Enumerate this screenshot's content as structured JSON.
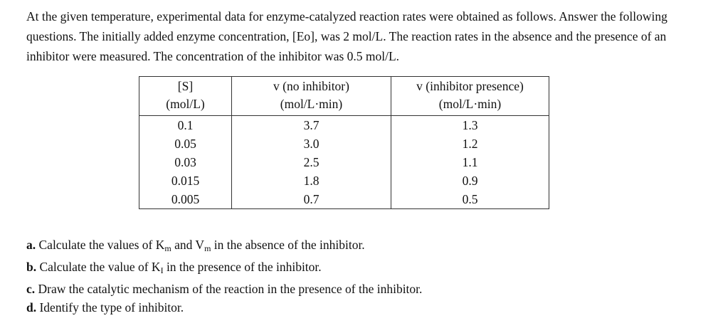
{
  "intro": {
    "text": "At the given temperature, experimental data for enzyme-catalyzed reaction rates were obtained as follows. Answer the following questions. The initially added enzyme concentration, [Eo], was 2 mol/L. The reaction rates in the absence and the presence of an inhibitor were measured. The concentration of the inhibitor was 0.5 mol/L."
  },
  "table": {
    "headers": [
      {
        "line1": "[S]",
        "line2": "(mol/L)"
      },
      {
        "line1": "v (no inhibitor)",
        "line2": "(mol/L·min)"
      },
      {
        "line1": "v (inhibitor presence)",
        "line2": "(mol/L·min)"
      }
    ],
    "rows": [
      [
        "0.1",
        "3.7",
        "1.3"
      ],
      [
        "0.05",
        "3.0",
        "1.2"
      ],
      [
        "0.03",
        "2.5",
        "1.1"
      ],
      [
        "0.015",
        "1.8",
        "0.9"
      ],
      [
        "0.005",
        "0.7",
        "0.5"
      ]
    ]
  },
  "questions": [
    {
      "letter": "a.",
      "pre": " Calculate the values of K",
      "sub1": "m",
      "mid": " and V",
      "sub2": "m",
      "post": " in the absence of the inhibitor."
    },
    {
      "letter": "b.",
      "pre": " Calculate the value of K",
      "sub1": "I",
      "mid": "",
      "sub2": "",
      "post": " in the presence of the inhibitor."
    },
    {
      "letter": "c.",
      "pre": " Draw the catalytic mechanism of the reaction in the presence of the inhibitor.",
      "sub1": "",
      "mid": "",
      "sub2": "",
      "post": ""
    },
    {
      "letter": "d.",
      "pre": " Identify the type of inhibitor.",
      "sub1": "",
      "mid": "",
      "sub2": "",
      "post": ""
    }
  ]
}
